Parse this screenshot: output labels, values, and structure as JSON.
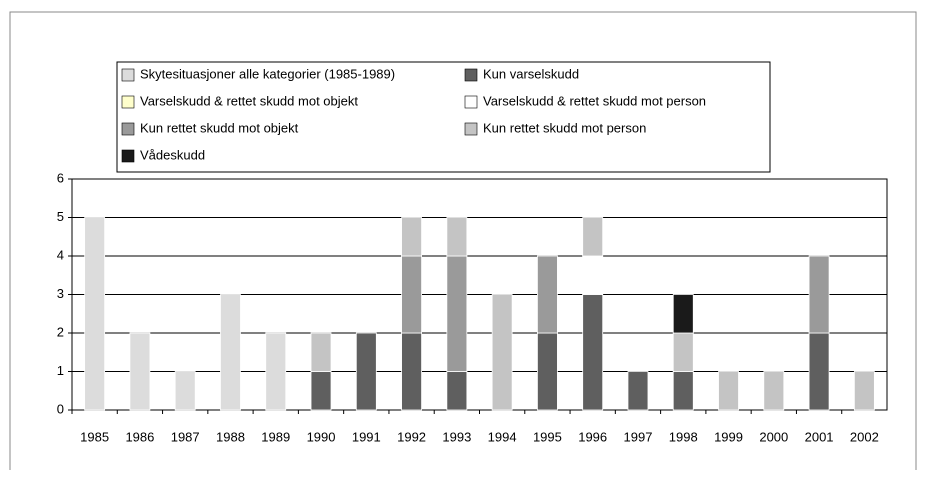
{
  "chart_data": {
    "type": "stacked_bar",
    "categories": [
      "1985",
      "1986",
      "1987",
      "1988",
      "1989",
      "1990",
      "1991",
      "1992",
      "1993",
      "1994",
      "1995",
      "1996",
      "1997",
      "1998",
      "1999",
      "2000",
      "2001",
      "2002"
    ],
    "series": [
      {
        "name": "Skytesituasjoner alle kategorier (1985-1989)",
        "color": "#dcdcdc",
        "values": [
          5,
          2,
          1,
          3,
          2,
          0,
          0,
          0,
          0,
          0,
          0,
          0,
          0,
          0,
          0,
          0,
          0,
          0
        ]
      },
      {
        "name": "Kun varselskudd",
        "color": "#5f5f5f",
        "values": [
          0,
          0,
          0,
          0,
          0,
          1,
          2,
          2,
          1,
          0,
          2,
          3,
          1,
          1,
          0,
          0,
          2,
          0
        ]
      },
      {
        "name": "Varselskudd & rettet skudd mot objekt",
        "color": "#ffffcc",
        "values": [
          0,
          0,
          0,
          0,
          0,
          0,
          0,
          0,
          0,
          0,
          0,
          0,
          0,
          0,
          0,
          0,
          0,
          0
        ]
      },
      {
        "name": "Varselskudd & rettet skudd mot person",
        "color": "#ffffff",
        "values": [
          0,
          0,
          0,
          0,
          0,
          0,
          0,
          0,
          0,
          0,
          0,
          1,
          0,
          0,
          0,
          0,
          0,
          0
        ]
      },
      {
        "name": "Kun rettet skudd mot objekt",
        "color": "#9a9a9a",
        "values": [
          0,
          0,
          0,
          0,
          0,
          0,
          0,
          2,
          3,
          0,
          2,
          0,
          0,
          0,
          0,
          0,
          2,
          0
        ]
      },
      {
        "name": "Kun rettet skudd mot person",
        "color": "#c4c4c4",
        "values": [
          0,
          0,
          0,
          0,
          0,
          1,
          0,
          1,
          1,
          3,
          0,
          1,
          0,
          1,
          1,
          1,
          0,
          1
        ]
      },
      {
        "name": "Vådeskudd",
        "color": "#1a1a1a",
        "values": [
          0,
          0,
          0,
          0,
          0,
          0,
          0,
          0,
          0,
          0,
          0,
          0,
          0,
          1,
          0,
          0,
          0,
          0
        ]
      }
    ],
    "ylim": [
      0,
      6
    ],
    "yticks": [
      0,
      1,
      2,
      3,
      4,
      5,
      6
    ],
    "grid": true
  }
}
